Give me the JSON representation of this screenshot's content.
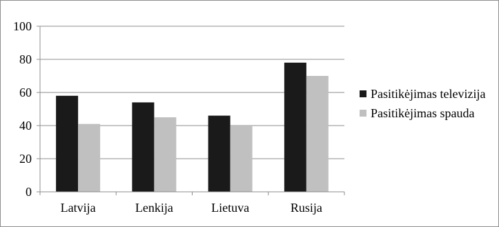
{
  "chart_data": {
    "type": "bar",
    "categories": [
      "Latvija",
      "Lenkija",
      "Lietuva",
      "Rusija"
    ],
    "series": [
      {
        "name": "Pasitikėjimas televizija",
        "values": [
          58,
          54,
          46,
          78
        ],
        "color": "#1a1a1a"
      },
      {
        "name": "Pasitikėjimas spauda",
        "values": [
          41,
          45,
          40,
          70
        ],
        "color": "#c0c0c0"
      }
    ],
    "ylim": [
      0,
      100
    ],
    "yticks": [
      0,
      20,
      40,
      60,
      80,
      100
    ],
    "grid": true,
    "legend": "right"
  }
}
